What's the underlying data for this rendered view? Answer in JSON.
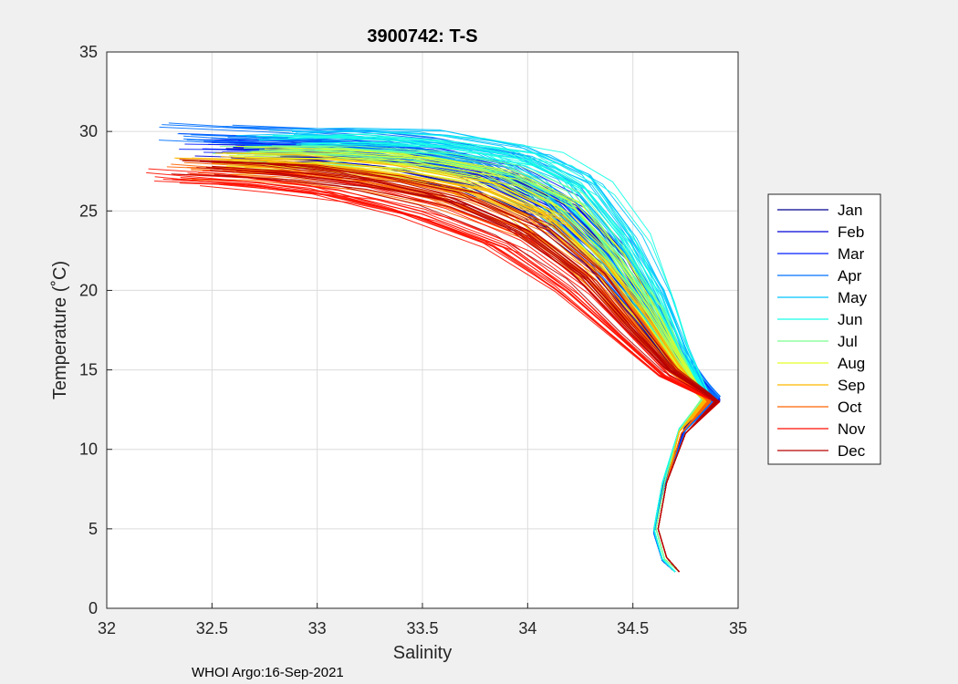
{
  "chart_data": {
    "type": "line",
    "title": "3900742:  T-S",
    "xlabel": "Salinity",
    "ylabel": "Temperature (˚C)",
    "xlim": [
      32,
      35
    ],
    "ylim": [
      0,
      35
    ],
    "xticks": [
      "32",
      "32.5",
      "33",
      "33.5",
      "34",
      "34.5",
      "35"
    ],
    "yticks": [
      "0",
      "5",
      "10",
      "15",
      "20",
      "25",
      "30",
      "35"
    ],
    "grid": true,
    "legend_position": "right",
    "footnote": "WHOI Argo:16-Sep-2021",
    "series": [
      {
        "name": "Jan",
        "color": "#00008f",
        "x": [
          32.7,
          33.0,
          33.4,
          33.8,
          34.1,
          34.35,
          34.55,
          34.7,
          34.85,
          34.9,
          34.75,
          34.65,
          34.6,
          34.64,
          34.7
        ],
        "y": [
          28.7,
          28.6,
          28.1,
          27.0,
          25.0,
          22.0,
          18.5,
          15.5,
          13.5,
          13.0,
          11.5,
          8.0,
          5.0,
          3.0,
          2.3
        ]
      },
      {
        "name": "Feb",
        "color": "#0000d5",
        "x": [
          32.6,
          33.0,
          33.4,
          33.8,
          34.1,
          34.35,
          34.55,
          34.7,
          34.85,
          34.9,
          34.75,
          34.65,
          34.6,
          34.64,
          34.7
        ],
        "y": [
          29.0,
          28.9,
          28.4,
          27.3,
          25.3,
          22.3,
          18.7,
          15.7,
          13.7,
          13.1,
          11.4,
          7.9,
          4.9,
          3.0,
          2.3
        ]
      },
      {
        "name": "Mar",
        "color": "#001cff",
        "x": [
          32.5,
          33.0,
          33.4,
          33.8,
          34.1,
          34.35,
          34.55,
          34.7,
          34.85,
          34.9,
          34.75,
          34.65,
          34.6,
          34.64,
          34.7
        ],
        "y": [
          29.3,
          29.1,
          28.7,
          27.6,
          25.6,
          22.5,
          18.9,
          15.8,
          13.8,
          13.2,
          11.3,
          7.8,
          4.8,
          3.0,
          2.3
        ]
      },
      {
        "name": "Apr",
        "color": "#0070ff",
        "x": [
          32.4,
          33.0,
          33.4,
          33.8,
          34.1,
          34.35,
          34.55,
          34.7,
          34.85,
          34.9,
          34.75,
          34.65,
          34.6,
          34.64,
          34.7
        ],
        "y": [
          29.8,
          29.5,
          29.1,
          28.0,
          26.0,
          22.8,
          19.1,
          16.0,
          13.9,
          13.3,
          11.2,
          7.7,
          4.7,
          3.0,
          2.3
        ]
      },
      {
        "name": "May",
        "color": "#00c4ff",
        "x": [
          32.8,
          33.1,
          33.5,
          33.9,
          34.2,
          34.4,
          34.6,
          34.72,
          34.82,
          34.86,
          34.72,
          34.64,
          34.6,
          34.64,
          34.7
        ],
        "y": [
          29.5,
          29.6,
          29.4,
          28.6,
          26.8,
          23.6,
          19.8,
          16.4,
          14.0,
          13.3,
          11.3,
          7.8,
          4.9,
          3.1,
          2.3
        ]
      },
      {
        "name": "Jun",
        "color": "#18ffe6",
        "x": [
          32.9,
          33.2,
          33.6,
          34.0,
          34.25,
          34.45,
          34.6,
          34.72,
          34.82,
          34.85,
          34.72,
          34.64,
          34.6,
          34.64,
          34.7
        ],
        "y": [
          29.2,
          29.3,
          29.0,
          28.2,
          26.4,
          23.2,
          19.5,
          16.2,
          14.0,
          13.3,
          11.3,
          7.9,
          5.0,
          3.1,
          2.3
        ]
      },
      {
        "name": "Jul",
        "color": "#7bff8e",
        "x": [
          32.7,
          33.1,
          33.5,
          33.9,
          34.2,
          34.4,
          34.6,
          34.72,
          34.8,
          34.84,
          34.72,
          34.65,
          34.61,
          34.65,
          34.72
        ],
        "y": [
          28.5,
          28.6,
          28.3,
          27.4,
          25.6,
          22.5,
          19.0,
          15.9,
          13.9,
          13.2,
          11.2,
          7.9,
          5.0,
          3.1,
          2.3
        ]
      },
      {
        "name": "Aug",
        "color": "#e3ff27",
        "x": [
          32.6,
          33.0,
          33.4,
          33.8,
          34.1,
          34.35,
          34.55,
          34.7,
          34.8,
          34.84,
          34.72,
          34.66,
          34.62,
          34.66,
          34.72
        ],
        "y": [
          28.4,
          28.3,
          27.9,
          27.0,
          25.1,
          22.0,
          18.6,
          15.6,
          13.8,
          13.1,
          11.1,
          7.9,
          5.0,
          3.2,
          2.3
        ]
      },
      {
        "name": "Sep",
        "color": "#ffb700",
        "x": [
          32.5,
          32.9,
          33.3,
          33.7,
          34.05,
          34.3,
          34.52,
          34.68,
          34.8,
          34.85,
          34.72,
          34.66,
          34.62,
          34.66,
          34.72
        ],
        "y": [
          28.0,
          27.9,
          27.4,
          26.4,
          24.5,
          21.5,
          18.2,
          15.4,
          13.7,
          13.1,
          11.1,
          7.9,
          5.0,
          3.2,
          2.3
        ]
      },
      {
        "name": "Oct",
        "color": "#ff6300",
        "x": [
          32.4,
          32.8,
          33.2,
          33.6,
          34.0,
          34.3,
          34.52,
          34.68,
          34.82,
          34.86,
          34.73,
          34.66,
          34.62,
          34.66,
          34.72
        ],
        "y": [
          27.6,
          27.4,
          26.8,
          25.7,
          23.7,
          20.8,
          17.6,
          15.0,
          13.6,
          13.0,
          11.0,
          7.9,
          5.0,
          3.2,
          2.3
        ]
      },
      {
        "name": "Nov",
        "color": "#ff0f00",
        "x": [
          32.35,
          32.7,
          33.1,
          33.5,
          33.9,
          34.2,
          34.45,
          34.65,
          34.82,
          34.9,
          34.75,
          34.66,
          34.62,
          34.66,
          34.72
        ],
        "y": [
          27.1,
          26.8,
          26.1,
          24.8,
          22.8,
          20.0,
          17.0,
          14.6,
          13.5,
          13.0,
          11.0,
          7.9,
          5.0,
          3.2,
          2.3
        ]
      },
      {
        "name": "Dec",
        "color": "#b70000",
        "x": [
          32.5,
          32.85,
          33.25,
          33.65,
          34.0,
          34.28,
          34.5,
          34.68,
          34.84,
          34.9,
          34.75,
          34.66,
          34.62,
          34.66,
          34.72
        ],
        "y": [
          27.8,
          27.5,
          26.9,
          25.8,
          23.8,
          20.9,
          17.6,
          15.0,
          13.6,
          13.0,
          11.0,
          7.9,
          5.0,
          3.2,
          2.3
        ]
      }
    ]
  }
}
